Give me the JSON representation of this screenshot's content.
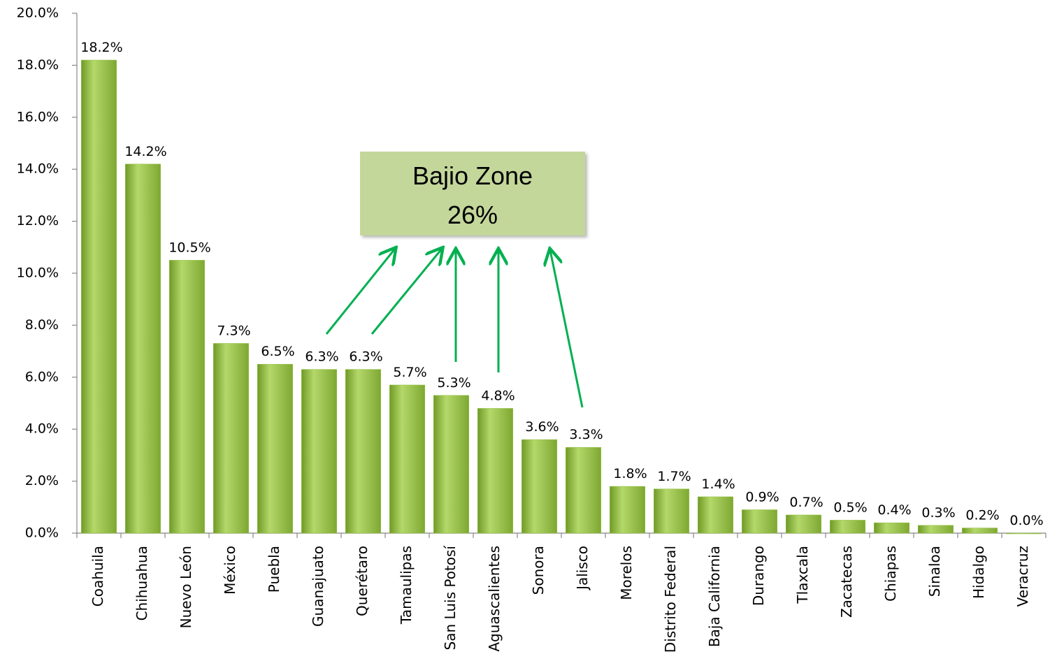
{
  "chart_data": {
    "type": "bar",
    "categories": [
      "Coahuila",
      "Chihuahua",
      "Nuevo León",
      "México",
      "Puebla",
      "Guanajuato",
      "Querétaro",
      "Tamaulipas",
      "San Luis Potosí",
      "Aguascalientes",
      "Sonora",
      "Jalisco",
      "Morelos",
      "Distrito Federal",
      "Baja California",
      "Durango",
      "Tlaxcala",
      "Zacatecas",
      "Chiapas",
      "Sinaloa",
      "Hidalgo",
      "Veracruz"
    ],
    "values": [
      18.2,
      14.2,
      10.5,
      7.3,
      6.5,
      6.3,
      6.3,
      5.7,
      5.3,
      4.8,
      3.6,
      3.3,
      1.8,
      1.7,
      1.4,
      0.9,
      0.7,
      0.5,
      0.4,
      0.3,
      0.2,
      0.0
    ],
    "value_labels": [
      "18.2%",
      "14.2%",
      "10.5%",
      "7.3%",
      "6.5%",
      "6.3%",
      "6.3%",
      "5.7%",
      "5.3%",
      "4.8%",
      "3.6%",
      "3.3%",
      "1.8%",
      "1.7%",
      "1.4%",
      "0.9%",
      "0.7%",
      "0.5%",
      "0.4%",
      "0.3%",
      "0.2%",
      "0.0%"
    ],
    "color": "#92c13e",
    "ylim": [
      0,
      20
    ],
    "yticks": [
      {
        "value": 0,
        "label": "0.0%"
      },
      {
        "value": 2,
        "label": "2.0%"
      },
      {
        "value": 4,
        "label": "4.0%"
      },
      {
        "value": 6,
        "label": "6.0%"
      },
      {
        "value": 8,
        "label": "8.0%"
      },
      {
        "value": 10,
        "label": "10.0%"
      },
      {
        "value": 12,
        "label": "12.0%"
      },
      {
        "value": 14,
        "label": "14.0%"
      },
      {
        "value": 16,
        "label": "16.0%"
      },
      {
        "value": 18,
        "label": "18.0%"
      },
      {
        "value": 20,
        "label": "20.0%"
      }
    ],
    "annotation": [
      "Bajio Zone",
      "26%"
    ]
  }
}
